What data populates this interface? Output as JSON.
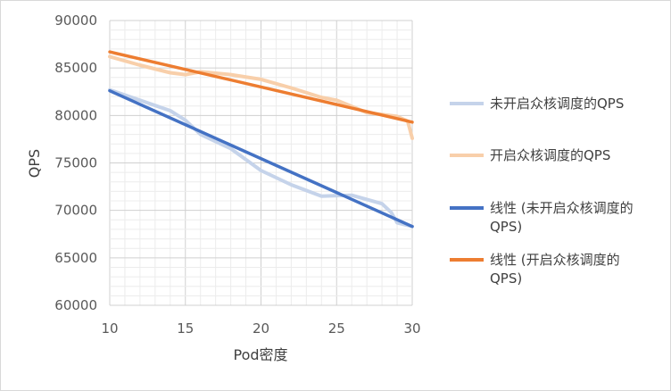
{
  "chart_data": {
    "type": "line",
    "xlabel": "Pod密度",
    "ylabel": "QPS",
    "xlim": [
      10,
      30
    ],
    "ylim": [
      60000,
      90000
    ],
    "x_ticks": [
      "10",
      "15",
      "20",
      "25",
      "30"
    ],
    "y_ticks": [
      "60000",
      "65000",
      "70000",
      "75000",
      "80000",
      "85000",
      "90000"
    ],
    "grid": true,
    "legend_position": "right",
    "series": [
      {
        "name": "未开启众核调度的QPS",
        "color": "#c5d3ea",
        "x": [
          10,
          12,
          14,
          15,
          16,
          18,
          20,
          22,
          24,
          26,
          28,
          28.6,
          29,
          30
        ],
        "y": [
          82700,
          81600,
          80500,
          79500,
          78000,
          76500,
          74200,
          72700,
          71500,
          71600,
          70700,
          69800,
          68700,
          68300
        ]
      },
      {
        "name": "开启众核调度的QPS",
        "color": "#f8cfaa",
        "x": [
          10,
          12,
          14,
          15,
          16,
          18,
          20,
          22,
          24,
          25,
          27,
          29,
          29.7,
          30
        ],
        "y": [
          86200,
          85300,
          84500,
          84300,
          84600,
          84300,
          83800,
          82900,
          81900,
          81600,
          80300,
          79900,
          79400,
          77600
        ]
      },
      {
        "name": "线性 (未开启众核调度的QPS)",
        "legend_lines": [
          "线性 (未开启众核调度的",
          "QPS)"
        ],
        "color": "#4472c4",
        "x": [
          10,
          30
        ],
        "y": [
          82600,
          68300
        ]
      },
      {
        "name": "线性 (开启众核调度的QPS)",
        "legend_lines": [
          "线性 (开启众核调度的",
          "QPS)"
        ],
        "color": "#ed7d31",
        "x": [
          10,
          30
        ],
        "y": [
          86700,
          79300
        ]
      }
    ]
  }
}
